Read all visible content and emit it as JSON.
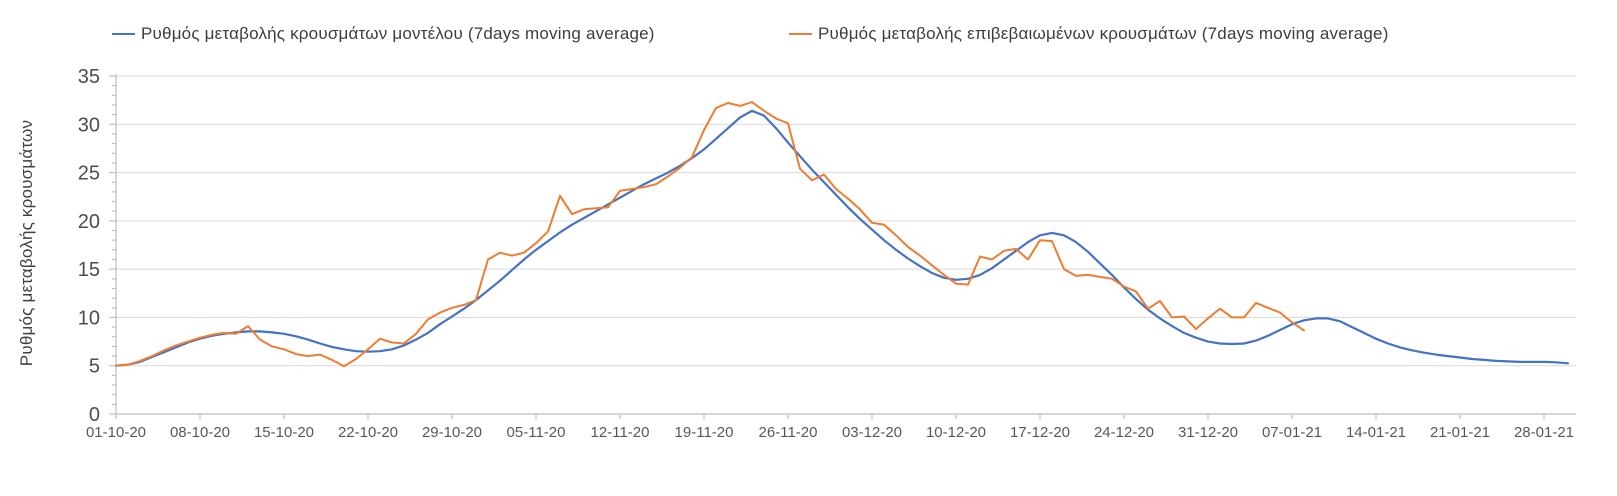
{
  "legend": {
    "items": [
      {
        "label": "Ρυθμός μεταβολής κρουσμάτων μοντέλου (7days moving average)",
        "color": "#4472C4"
      },
      {
        "label": "Ρυθμός μεταβολής επιβεβαιωμένων κρουσμάτων (7days moving average)",
        "color": "#ED7D31"
      }
    ]
  },
  "y_axis": {
    "title": "Ρυθμός μεταβολής κρουσμάτων",
    "ticks": [
      0,
      5,
      10,
      15,
      20,
      25,
      30,
      35
    ],
    "minor_tick_step": 1,
    "min": 0,
    "max": 35
  },
  "x_axis": {
    "tick_labels": [
      "01-10-20",
      "08-10-20",
      "15-10-20",
      "22-10-20",
      "29-10-20",
      "05-11-20",
      "12-11-20",
      "19-11-20",
      "26-11-20",
      "03-12-20",
      "10-12-20",
      "17-12-20",
      "24-12-20",
      "31-12-20",
      "07-01-21",
      "14-01-21",
      "21-01-21",
      "28-01-21"
    ],
    "tick_interval_days": 7
  },
  "colors": {
    "model_line": "#4472C4",
    "confirmed_line": "#ED7D31",
    "gridline": "#D9D9D9",
    "axis": "#BFBFBF",
    "tick_text": "#585858",
    "legend_text": "#3d3d3d"
  },
  "chart_data": {
    "type": "line",
    "title": "",
    "xlabel": "",
    "ylabel": "Ρυθμός μεταβολής κρουσμάτων",
    "ylim": [
      0,
      35
    ],
    "grid": "horizontal gridlines every 5 units",
    "legend_position": "top",
    "x": "one point per day, starting at x tick label 01-10-20",
    "x_tick_labels": [
      "01-10-20",
      "08-10-20",
      "15-10-20",
      "22-10-20",
      "29-10-20",
      "05-11-20",
      "12-11-20",
      "19-11-20",
      "26-11-20",
      "03-12-20",
      "10-12-20",
      "17-12-20",
      "24-12-20",
      "31-12-20",
      "07-01-21",
      "14-01-21",
      "21-01-21",
      "28-01-21"
    ],
    "series": [
      {
        "name": "Ρυθμός μεταβολής κρουσμάτων μοντέλου (7days moving average)",
        "color": "#4472C4",
        "start_x_label": "01-10-20",
        "values": [
          5.0,
          5.1,
          5.4,
          5.9,
          6.4,
          6.9,
          7.4,
          7.8,
          8.1,
          8.3,
          8.45,
          8.55,
          8.55,
          8.45,
          8.3,
          8.05,
          7.7,
          7.3,
          6.95,
          6.7,
          6.5,
          6.45,
          6.5,
          6.7,
          7.1,
          7.7,
          8.4,
          9.3,
          10.1,
          10.9,
          11.8,
          12.8,
          13.8,
          14.9,
          16.0,
          17.0,
          17.9,
          18.8,
          19.6,
          20.3,
          21.0,
          21.7,
          22.4,
          23.1,
          23.8,
          24.4,
          25.0,
          25.7,
          26.5,
          27.4,
          28.5,
          29.6,
          30.7,
          31.4,
          30.9,
          29.6,
          28.1,
          26.7,
          25.3,
          24.0,
          22.7,
          21.4,
          20.2,
          19.1,
          18.0,
          17.0,
          16.1,
          15.3,
          14.6,
          14.1,
          13.9,
          14.0,
          14.4,
          15.1,
          16.0,
          16.9,
          17.8,
          18.5,
          18.75,
          18.5,
          17.8,
          16.8,
          15.6,
          14.4,
          13.1,
          11.9,
          10.8,
          9.9,
          9.1,
          8.4,
          7.9,
          7.5,
          7.3,
          7.25,
          7.3,
          7.6,
          8.1,
          8.7,
          9.3,
          9.7,
          9.9,
          9.9,
          9.6,
          9.0,
          8.4,
          7.8,
          7.3,
          6.9,
          6.6,
          6.35,
          6.15,
          6.0,
          5.85,
          5.7,
          5.6,
          5.5,
          5.45,
          5.4,
          5.4,
          5.4,
          5.35,
          5.25
        ]
      },
      {
        "name": "Ρυθμός μεταβολής επιβεβαιωμένων κρουσμάτων (7days moving average)",
        "color": "#ED7D31",
        "start_x_label": "01-10-20",
        "values": [
          5.0,
          5.1,
          5.5,
          6.0,
          6.6,
          7.1,
          7.5,
          7.9,
          8.2,
          8.4,
          8.3,
          9.1,
          7.7,
          7.0,
          6.7,
          6.2,
          6.0,
          6.15,
          5.6,
          4.95,
          5.7,
          6.7,
          7.8,
          7.4,
          7.3,
          8.3,
          9.8,
          10.5,
          11.0,
          11.3,
          11.8,
          16.0,
          16.7,
          16.4,
          16.7,
          17.7,
          18.9,
          22.6,
          20.7,
          21.2,
          21.3,
          21.4,
          23.1,
          23.3,
          23.5,
          23.8,
          24.6,
          25.5,
          26.6,
          29.4,
          31.7,
          32.2,
          31.9,
          32.3,
          31.4,
          30.6,
          30.1,
          25.4,
          24.2,
          24.8,
          23.3,
          22.3,
          21.2,
          19.8,
          19.6,
          18.5,
          17.3,
          16.4,
          15.4,
          14.4,
          13.5,
          13.4,
          16.3,
          16.0,
          16.9,
          17.1,
          16.0,
          18.0,
          17.9,
          15.0,
          14.3,
          14.4,
          14.2,
          14.0,
          13.2,
          12.7,
          10.9,
          11.7,
          10.0,
          10.1,
          8.8,
          9.9,
          10.9,
          10.0,
          10.0,
          11.5,
          11.0,
          10.5,
          9.5,
          8.65
        ]
      }
    ]
  }
}
